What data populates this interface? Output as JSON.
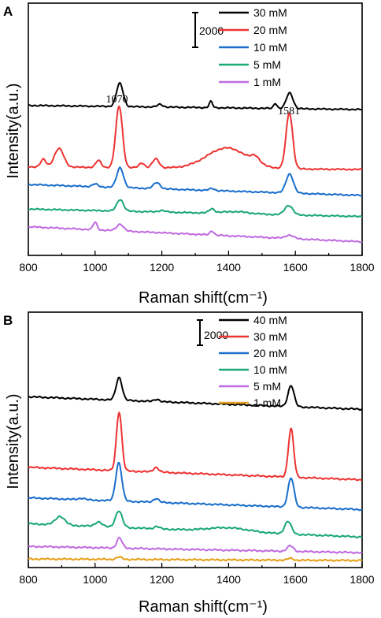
{
  "chart_data": [
    {
      "panel": "A",
      "type": "line",
      "xlabel": "Raman shift(cm⁻¹)",
      "ylabel": "Intensity(a.u.)",
      "xlim": [
        800,
        1800
      ],
      "xticks": [
        "800",
        "1000",
        "1200",
        "1400",
        "1600",
        "1800"
      ],
      "scale_bar": "2000",
      "annotations": [
        {
          "text": "1070",
          "x": 1070
        },
        {
          "text": "1581",
          "x": 1581
        }
      ],
      "series": [
        {
          "name": "30 mM",
          "color": "#000000",
          "baseline_start": 10000,
          "baseline_end": 9700,
          "peaks": [
            [
              1074,
              1700,
              10
            ],
            [
              1347,
              450,
              5
            ],
            [
              1540,
              380,
              5
            ],
            [
              1583,
              1150,
              10
            ],
            [
              1195,
              200,
              8
            ]
          ]
        },
        {
          "name": "20 mM",
          "color": "#ee3333",
          "baseline_start": 5500,
          "baseline_end": 5300,
          "peaks": [
            [
              1072,
              4500,
              10
            ],
            [
              1582,
              4100,
              10
            ],
            [
              892,
              1350,
              14
            ],
            [
              845,
              550,
              8
            ],
            [
              1010,
              500,
              8
            ],
            [
              1182,
              650,
              10
            ],
            [
              1140,
              350,
              8
            ],
            [
              1395,
              1500,
              60
            ],
            [
              1480,
              450,
              12
            ]
          ]
        },
        {
          "name": "10 mM",
          "color": "#1a6ecc",
          "baseline_start": 4200,
          "baseline_end": 3400,
          "peaks": [
            [
              1075,
              1450,
              10
            ],
            [
              1583,
              1400,
              11
            ],
            [
              1185,
              450,
              10
            ],
            [
              1000,
              200,
              8
            ],
            [
              1350,
              150,
              8
            ]
          ]
        },
        {
          "name": "5 mM",
          "color": "#1aa873",
          "baseline_start": 2400,
          "baseline_end": 1850,
          "peaks": [
            [
              1075,
              850,
              10
            ],
            [
              1580,
              700,
              12
            ],
            [
              1350,
              300,
              8
            ],
            [
              1420,
              150,
              40
            ],
            [
              1200,
              120,
              10
            ]
          ]
        },
        {
          "name": "1 mM",
          "color": "#c06be0",
          "baseline_start": 1100,
          "baseline_end": 0,
          "peaks": [
            [
              1000,
              550,
              6
            ],
            [
              1075,
              500,
              10
            ],
            [
              1350,
              300,
              6
            ],
            [
              1582,
              250,
              12
            ]
          ]
        }
      ]
    },
    {
      "panel": "B",
      "type": "line",
      "xlabel": "Raman shift(cm⁻¹)",
      "ylabel": "Intensity(a.u.)",
      "xlim": [
        800,
        1800
      ],
      "xticks": [
        "800",
        "1000",
        "1200",
        "1400",
        "1600",
        "1800"
      ],
      "scale_bar": "2000",
      "series": [
        {
          "name": "40 mM",
          "color": "#000000",
          "baseline_start": 10600,
          "baseline_end": 9800,
          "peaks": [
            [
              1072,
              1450,
              9
            ],
            [
              1587,
              1350,
              9
            ],
            [
              1185,
              150,
              8
            ]
          ]
        },
        {
          "name": "30 mM",
          "color": "#ee3333",
          "baseline_start": 6100,
          "baseline_end": 5300,
          "peaks": [
            [
              1072,
              3750,
              8
            ],
            [
              1587,
              3100,
              8
            ],
            [
              1183,
              300,
              8
            ]
          ]
        },
        {
          "name": "20 mM",
          "color": "#1a6ecc",
          "baseline_start": 4150,
          "baseline_end": 3400,
          "peaks": [
            [
              1071,
              2450,
              9
            ],
            [
              1587,
              1850,
              9
            ],
            [
              1183,
              250,
              8
            ],
            [
              960,
              100,
              10
            ]
          ]
        },
        {
          "name": "10 mM",
          "color": "#1aa873",
          "baseline_start": 2500,
          "baseline_end": 1650,
          "peaks": [
            [
              1071,
              1050,
              10
            ],
            [
              1578,
              800,
              10
            ],
            [
              895,
              550,
              14
            ],
            [
              1010,
              300,
              10
            ],
            [
              1400,
              250,
              60
            ],
            [
              1185,
              150,
              8
            ]
          ]
        },
        {
          "name": "5 mM",
          "color": "#c06be0",
          "baseline_start": 1050,
          "baseline_end": 650,
          "peaks": [
            [
              1073,
              650,
              8
            ],
            [
              1585,
              350,
              9
            ]
          ]
        },
        {
          "name": "1 mM",
          "color": "#e6a01a",
          "baseline_start": 250,
          "baseline_end": 150,
          "peaks": [
            [
              1072,
              150,
              8
            ],
            [
              1585,
              120,
              8
            ]
          ]
        }
      ]
    }
  ]
}
